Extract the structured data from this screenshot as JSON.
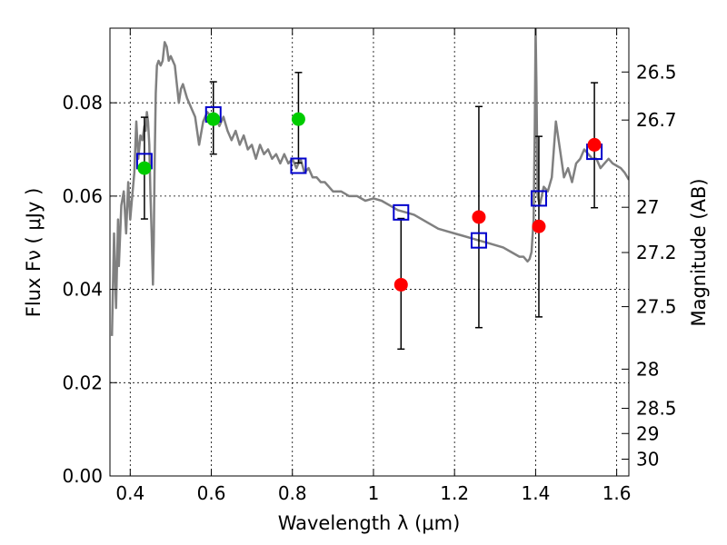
{
  "chart_data": {
    "type": "scatter",
    "xlabel": "Wavelength  λ (μm)",
    "ylabel": "Flux  Fν  ( μJy )",
    "ylabel_right": "Magnitude (AB)",
    "xlim": [
      0.35,
      1.63
    ],
    "ylim": [
      0.0,
      0.096
    ],
    "grid": true,
    "x_ticks": [
      0.4,
      0.6,
      0.8,
      1.0,
      1.2,
      1.4,
      1.6
    ],
    "x_tick_labels": [
      "0.4",
      "0.6",
      "0.8",
      "1",
      "1.2",
      "1.4",
      "1.6"
    ],
    "y_ticks": [
      0.0,
      0.02,
      0.04,
      0.06,
      0.08
    ],
    "y_tick_labels": [
      "0.00",
      "0.02",
      "0.04",
      "0.06",
      "0.08"
    ],
    "right_ticks": [
      {
        "label": "26.5",
        "flux": 0.0866
      },
      {
        "label": "26.7",
        "flux": 0.0763
      },
      {
        "label": "27",
        "flux": 0.0576
      },
      {
        "label": "27.2",
        "flux": 0.0479
      },
      {
        "label": "27.5",
        "flux": 0.0363
      },
      {
        "label": "28",
        "flux": 0.0229
      },
      {
        "label": "28.5",
        "flux": 0.0145
      },
      {
        "label": "29",
        "flux": 0.0091
      },
      {
        "label": "30",
        "flux": 0.0036
      }
    ],
    "series": [
      {
        "kind": "line",
        "color": "#808080",
        "x": [
          0.355,
          0.36,
          0.365,
          0.37,
          0.372,
          0.378,
          0.384,
          0.39,
          0.395,
          0.4,
          0.405,
          0.41,
          0.415,
          0.42,
          0.425,
          0.43,
          0.435,
          0.438,
          0.441,
          0.444,
          0.447,
          0.45,
          0.453,
          0.456,
          0.458,
          0.46,
          0.463,
          0.466,
          0.47,
          0.475,
          0.48,
          0.485,
          0.49,
          0.495,
          0.5,
          0.51,
          0.52,
          0.525,
          0.53,
          0.54,
          0.55,
          0.56,
          0.57,
          0.58,
          0.59,
          0.6,
          0.61,
          0.62,
          0.63,
          0.64,
          0.65,
          0.66,
          0.67,
          0.68,
          0.69,
          0.7,
          0.71,
          0.72,
          0.73,
          0.74,
          0.75,
          0.76,
          0.77,
          0.78,
          0.79,
          0.8,
          0.81,
          0.82,
          0.83,
          0.84,
          0.85,
          0.86,
          0.87,
          0.88,
          0.89,
          0.9,
          0.91,
          0.92,
          0.94,
          0.96,
          0.98,
          1.0,
          1.02,
          1.04,
          1.06,
          1.08,
          1.1,
          1.12,
          1.14,
          1.16,
          1.18,
          1.2,
          1.22,
          1.24,
          1.26,
          1.28,
          1.3,
          1.32,
          1.34,
          1.36,
          1.37,
          1.38,
          1.385,
          1.39,
          1.395,
          1.398,
          1.4,
          1.402,
          1.405,
          1.41,
          1.415,
          1.42,
          1.43,
          1.44,
          1.45,
          1.46,
          1.47,
          1.48,
          1.49,
          1.5,
          1.51,
          1.52,
          1.53,
          1.54,
          1.55,
          1.56,
          1.57,
          1.58,
          1.59,
          1.6,
          1.61,
          1.62,
          1.63
        ],
        "y": [
          0.03,
          0.052,
          0.036,
          0.055,
          0.045,
          0.058,
          0.061,
          0.052,
          0.063,
          0.055,
          0.06,
          0.065,
          0.076,
          0.068,
          0.073,
          0.072,
          0.075,
          0.074,
          0.078,
          0.076,
          0.071,
          0.06,
          0.052,
          0.041,
          0.05,
          0.066,
          0.082,
          0.088,
          0.089,
          0.088,
          0.089,
          0.093,
          0.092,
          0.089,
          0.09,
          0.088,
          0.08,
          0.083,
          0.084,
          0.081,
          0.079,
          0.077,
          0.071,
          0.076,
          0.078,
          0.077,
          0.077,
          0.075,
          0.077,
          0.074,
          0.072,
          0.074,
          0.071,
          0.073,
          0.07,
          0.071,
          0.068,
          0.071,
          0.069,
          0.07,
          0.068,
          0.069,
          0.067,
          0.069,
          0.067,
          0.068,
          0.066,
          0.068,
          0.065,
          0.066,
          0.064,
          0.064,
          0.063,
          0.063,
          0.062,
          0.061,
          0.061,
          0.061,
          0.06,
          0.06,
          0.059,
          0.0595,
          0.059,
          0.058,
          0.057,
          0.0565,
          0.056,
          0.055,
          0.054,
          0.053,
          0.0525,
          0.052,
          0.0515,
          0.051,
          0.0505,
          0.05,
          0.0495,
          0.049,
          0.048,
          0.047,
          0.047,
          0.046,
          0.0465,
          0.048,
          0.055,
          0.075,
          0.096,
          0.084,
          0.06,
          0.058,
          0.06,
          0.062,
          0.061,
          0.064,
          0.076,
          0.07,
          0.064,
          0.066,
          0.063,
          0.067,
          0.068,
          0.07,
          0.069,
          0.068,
          0.068,
          0.066,
          0.067,
          0.068,
          0.067,
          0.0665,
          0.066,
          0.065,
          0.0635
        ]
      },
      {
        "kind": "model-photometry",
        "marker": "open-square",
        "color": "#0000cc",
        "x": [
          0.435,
          0.605,
          0.815,
          1.068,
          1.26,
          1.408,
          1.545
        ],
        "y": [
          0.0675,
          0.0775,
          0.0665,
          0.0565,
          0.0505,
          0.0595,
          0.0695
        ]
      },
      {
        "kind": "observed-photometry",
        "x": [
          0.435,
          0.605,
          0.815,
          1.068,
          1.26,
          1.408,
          1.545
        ],
        "y": [
          0.066,
          0.0765,
          0.0765,
          0.041,
          0.0555,
          0.0535,
          0.071
        ],
        "yerr_low": [
          0.0551,
          0.069,
          0.0671,
          0.0272,
          0.0318,
          0.0341,
          0.0575
        ],
        "yerr_high": [
          0.0769,
          0.0845,
          0.0865,
          0.0552,
          0.0792,
          0.0728,
          0.0843
        ],
        "colors": [
          "#00cc00",
          "#00cc00",
          "#00cc00",
          "#ff0000",
          "#ff0000",
          "#ff0000",
          "#ff0000"
        ]
      }
    ]
  }
}
